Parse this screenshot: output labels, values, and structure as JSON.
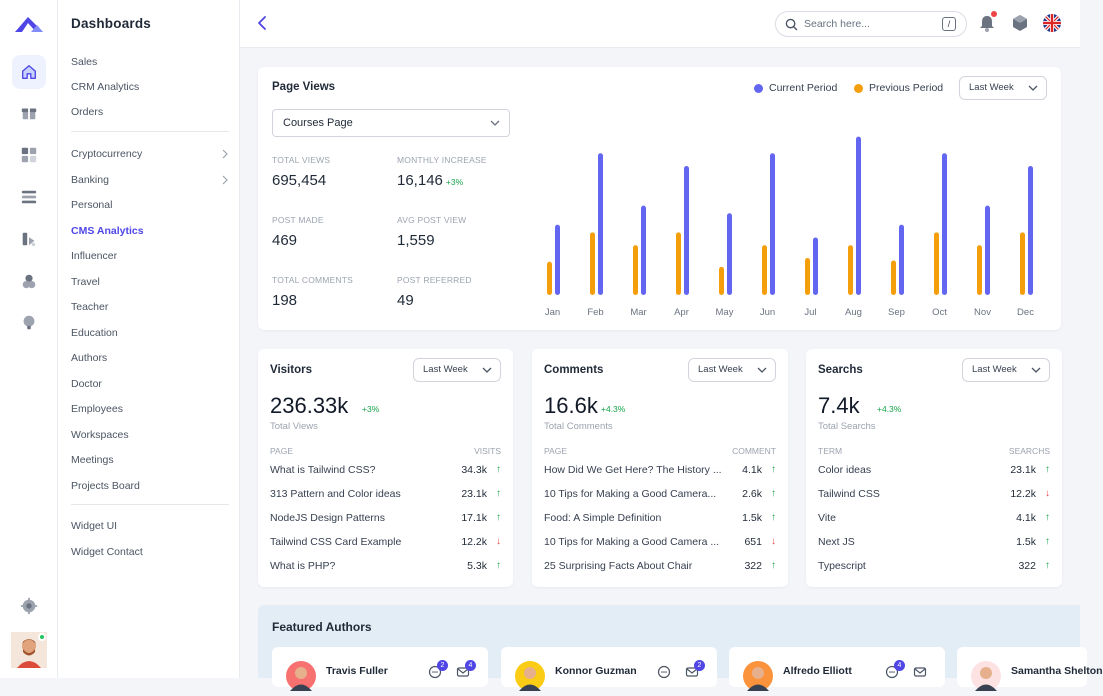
{
  "colors": {
    "accent": "#4f46e5",
    "current": "#6366f1",
    "previous": "#f59e0b",
    "up": "#16a34a",
    "down": "#ef4444"
  },
  "rail": {
    "icons": [
      "home-icon",
      "gift-icon",
      "grid-icon",
      "layers-icon",
      "apps-icon",
      "user-icon",
      "lightbulb-icon",
      "settings-icon"
    ]
  },
  "menu": {
    "title": "Dashboards",
    "group1": [
      "Sales",
      "CRM Analytics",
      "Orders"
    ],
    "group2": [
      {
        "label": "Cryptocurrency",
        "chevron": true
      },
      {
        "label": "Banking",
        "chevron": true
      },
      {
        "label": "Personal"
      },
      {
        "label": "CMS Analytics",
        "active": true
      },
      {
        "label": "Influencer"
      },
      {
        "label": "Travel"
      },
      {
        "label": "Teacher"
      },
      {
        "label": "Education"
      },
      {
        "label": "Authors"
      },
      {
        "label": "Doctor"
      },
      {
        "label": "Employees"
      },
      {
        "label": "Workspaces"
      },
      {
        "label": "Meetings"
      },
      {
        "label": "Projects Board"
      }
    ],
    "group3": [
      "Widget UI",
      "Widget Contact"
    ]
  },
  "topbar": {
    "search_placeholder": "Search here...",
    "search_shortcut": "/"
  },
  "page_views": {
    "title": "Page Views",
    "legend_current": "Current Period",
    "legend_previous": "Previous Period",
    "period": "Last Week",
    "select": "Courses Page",
    "stats": [
      {
        "label": "TOTAL VIEWS",
        "value": "695,454",
        "change": ""
      },
      {
        "label": "MONTHLY INCREASE",
        "value": "16,146",
        "change": "+3%"
      },
      {
        "label": "POST MADE",
        "value": "469",
        "change": ""
      },
      {
        "label": "AVG POST VIEW",
        "value": "1,559",
        "change": ""
      },
      {
        "label": "TOTAL COMMENTS",
        "value": "198",
        "change": ""
      },
      {
        "label": "POST REFERRED",
        "value": "49",
        "change": ""
      }
    ]
  },
  "chart_data": {
    "type": "bar",
    "categories": [
      "Jan",
      "Feb",
      "Mar",
      "Apr",
      "May",
      "Jun",
      "Jul",
      "Aug",
      "Sep",
      "Oct",
      "Nov",
      "Dec"
    ],
    "series": [
      {
        "name": "Previous Period",
        "values": [
          26,
          49,
          39,
          49,
          22,
          39,
          29,
          39,
          27,
          49,
          39,
          49
        ]
      },
      {
        "name": "Current Period",
        "values": [
          55,
          111,
          70,
          101,
          64,
          111,
          45,
          124,
          55,
          111,
          70,
          101
        ]
      }
    ],
    "ylim": [
      0,
      130
    ]
  },
  "cards": [
    {
      "title": "Visitors",
      "period": "Last Week",
      "value": "236.33k",
      "change": "+3%",
      "subtitle": "Total Views",
      "col1": "PAGE",
      "col2": "VISITS",
      "rows": [
        {
          "name": "What is Tailwind CSS?",
          "value": "34.3k",
          "trend": "up"
        },
        {
          "name": "313 Pattern and Color ideas",
          "value": "23.1k",
          "trend": "up"
        },
        {
          "name": "NodeJS Design Patterns",
          "value": "17.1k",
          "trend": "up"
        },
        {
          "name": "Tailwind CSS Card Example",
          "value": "12.2k",
          "trend": "down"
        },
        {
          "name": "What is PHP?",
          "value": "5.3k",
          "trend": "up"
        }
      ]
    },
    {
      "title": "Comments",
      "period": "Last Week",
      "value": "16.6k",
      "change": "+4.3%",
      "subtitle": "Total Comments",
      "col1": "PAGE",
      "col2": "COMMENT",
      "rows": [
        {
          "name": "How Did We Get Here? The History ...",
          "value": "4.1k",
          "trend": "up"
        },
        {
          "name": "10 Tips for Making a Good Camera...",
          "value": "2.6k",
          "trend": "up"
        },
        {
          "name": "Food: A Simple Definition",
          "value": "1.5k",
          "trend": "up"
        },
        {
          "name": "10 Tips for Making a Good Camera ...",
          "value": "651",
          "trend": "down"
        },
        {
          "name": "25 Surprising Facts About Chair",
          "value": "322",
          "trend": "up"
        }
      ]
    },
    {
      "title": "Searchs",
      "period": "Last Week",
      "value": "7.4k",
      "change": "+4.3%",
      "subtitle": "Total Searchs",
      "col1": "TERM",
      "col2": "SEARCHS",
      "rows": [
        {
          "name": "Color ideas",
          "value": "23.1k",
          "trend": "up"
        },
        {
          "name": "Tailwind CSS",
          "value": "12.2k",
          "trend": "down"
        },
        {
          "name": "Vite",
          "value": "4.1k",
          "trend": "up"
        },
        {
          "name": "Next JS",
          "value": "1.5k",
          "trend": "up"
        },
        {
          "name": "Typescript",
          "value": "322",
          "trend": "up"
        }
      ]
    }
  ],
  "featured": {
    "title": "Featured Authors",
    "authors": [
      {
        "name": "Travis Fuller",
        "chat_count": "2",
        "mail_count": "4",
        "avatar_bg": "#f87171"
      },
      {
        "name": "Konnor Guzman",
        "chat_count": "",
        "mail_count": "2",
        "avatar_bg": "#facc15"
      },
      {
        "name": "Alfredo Elliott",
        "chat_count": "4",
        "mail_count": "",
        "avatar_bg": "#fb923c"
      },
      {
        "name": "Samantha Shelton",
        "chat_count": "",
        "mail_count": "",
        "avatar_bg": "#fde2e4"
      }
    ]
  }
}
